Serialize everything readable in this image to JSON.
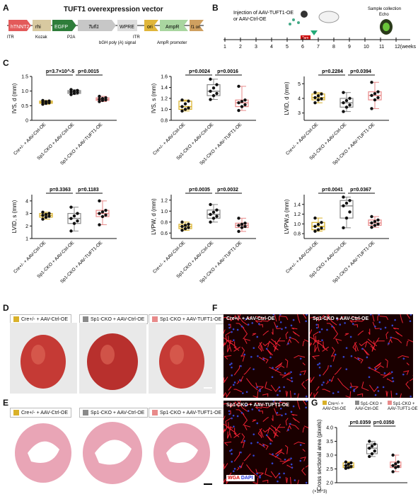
{
  "panels": {
    "A": {
      "letter": "A",
      "title": "TUFT1 overexpression vector",
      "segments": [
        "hTNNT2",
        "rhi",
        "EGFP",
        "Tufl1",
        "WPRE",
        "ori",
        "AmpR",
        "f1 ori"
      ],
      "below": [
        "ITR",
        "Kozak",
        "P2A",
        "bGH poly (A) signal",
        "ITR",
        "AmpR promoter"
      ]
    },
    "B": {
      "letter": "B",
      "injection": "Injection of AAV-TUFT1-OE\nor AAV-Ctrl-OE",
      "tam": "Tam",
      "sample": "Sample collection",
      "echo": "Echo",
      "ticks": [
        "1",
        "2",
        "3",
        "4",
        "5",
        "6",
        "7",
        "8",
        "9",
        "10",
        "11",
        "12(weeks)"
      ]
    },
    "C": {
      "letter": "C"
    },
    "D": {
      "letter": "D"
    },
    "E": {
      "letter": "E"
    },
    "F": {
      "letter": "F",
      "labels": [
        "Cre+/- + AAV-Ctrl-OE",
        "Sp1-CKO + AAV-Ctrl-OE",
        "Sp1-CKO + AAV-TUFT1-OE"
      ],
      "wga": "WGA",
      "dapi": "DAPI"
    },
    "G": {
      "letter": "G"
    }
  },
  "groups": {
    "g1": "Cre+/- + AAV-Ctrl-OE",
    "g2": "Sp1-CKO + AAV-Ctrl-OE",
    "g3": "Sp1-CKO + AAV-TUFT1-OE"
  },
  "colors": {
    "g1": "#d9b12a",
    "g2": "#8a8a8a",
    "g3": "#e88a8a"
  },
  "chart_data": [
    {
      "type": "box",
      "ylabel": "IVS, d (mm)",
      "ylim": [
        0.0,
        1.5
      ],
      "yticks": [
        "0",
        "0.5",
        "1.0",
        "1.5"
      ],
      "p1": "p=3.7×10^-5",
      "p2": "p=0.0015",
      "groups": [
        {
          "median": 0.62,
          "q1": 0.58,
          "q3": 0.66,
          "min": 0.55,
          "max": 0.68
        },
        {
          "median": 0.97,
          "q1": 0.92,
          "q3": 1.02,
          "min": 0.88,
          "max": 1.05
        },
        {
          "median": 0.72,
          "q1": 0.68,
          "q3": 0.77,
          "min": 0.64,
          "max": 0.82
        }
      ]
    },
    {
      "type": "box",
      "ylabel": "IVS, s (mm)",
      "ylim": [
        0.8,
        1.6
      ],
      "yticks": [
        "0.8",
        "1.0",
        "1.2",
        "1.4",
        "1.6"
      ],
      "p1": "p=0.0024",
      "p2": "p=0.0016",
      "groups": [
        {
          "median": 1.05,
          "q1": 1.0,
          "q3": 1.15,
          "min": 0.97,
          "max": 1.17
        },
        {
          "median": 1.33,
          "q1": 1.25,
          "q3": 1.45,
          "min": 1.18,
          "max": 1.55
        },
        {
          "median": 1.12,
          "q1": 1.05,
          "q3": 1.17,
          "min": 0.98,
          "max": 1.42
        }
      ]
    },
    {
      "type": "box",
      "ylabel": "LVID, d (mm)",
      "ylim": [
        2.5,
        5.5
      ],
      "yticks": [
        "3",
        "4",
        "5"
      ],
      "p1": "p=0.2284",
      "p2": "p=0.0394",
      "groups": [
        {
          "median": 4.05,
          "q1": 3.9,
          "q3": 4.3,
          "min": 3.7,
          "max": 4.4
        },
        {
          "median": 3.7,
          "q1": 3.4,
          "q3": 4.0,
          "min": 3.1,
          "max": 4.4
        },
        {
          "median": 4.2,
          "q1": 3.9,
          "q3": 4.45,
          "min": 3.3,
          "max": 5.1
        }
      ]
    },
    {
      "type": "box",
      "ylabel": "LVID, s (mm)",
      "ylim": [
        1.0,
        4.5
      ],
      "yticks": [
        "1",
        "2",
        "3",
        "4"
      ],
      "p1": "p=0.3363",
      "p2": "p=0.1183",
      "groups": [
        {
          "median": 2.85,
          "q1": 2.7,
          "q3": 3.0,
          "min": 2.55,
          "max": 3.1
        },
        {
          "median": 2.6,
          "q1": 2.2,
          "q3": 3.0,
          "min": 1.6,
          "max": 3.5
        },
        {
          "median": 3.0,
          "q1": 2.75,
          "q3": 3.25,
          "min": 2.1,
          "max": 4.0
        }
      ]
    },
    {
      "type": "box",
      "ylabel": "LVPW, d (mm)",
      "ylim": [
        0.5,
        1.3
      ],
      "yticks": [
        "0.6",
        "0.8",
        "1.0",
        "1.2"
      ],
      "p1": "p=0.0035",
      "p2": "p=0.0032",
      "groups": [
        {
          "median": 0.72,
          "q1": 0.68,
          "q3": 0.76,
          "min": 0.65,
          "max": 0.8
        },
        {
          "median": 0.94,
          "q1": 0.87,
          "q3": 1.02,
          "min": 0.8,
          "max": 1.12
        },
        {
          "median": 0.74,
          "q1": 0.7,
          "q3": 0.78,
          "min": 0.63,
          "max": 0.87
        }
      ]
    },
    {
      "type": "box",
      "ylabel": "LVPW,s (mm)",
      "ylim": [
        0.7,
        1.6
      ],
      "yticks": [
        "0.8",
        "1.0",
        "1.2",
        "1.4"
      ],
      "p1": "p=0.0041",
      "p2": "p=0.0367",
      "groups": [
        {
          "median": 0.95,
          "q1": 0.88,
          "q3": 1.03,
          "min": 0.85,
          "max": 1.12
        },
        {
          "median": 1.37,
          "q1": 1.12,
          "q3": 1.48,
          "min": 0.92,
          "max": 1.55
        },
        {
          "median": 1.02,
          "q1": 0.97,
          "q3": 1.08,
          "min": 0.93,
          "max": 1.15
        }
      ]
    },
    {
      "type": "box",
      "ylabel": "Cross sectional area (pixels)",
      "yunit": "(×10^3)",
      "ylim": [
        2.0,
        4.0
      ],
      "yticks": [
        "2.0",
        "2.5",
        "3.0",
        "3.5",
        "4.0"
      ],
      "p1": "p=0.0359",
      "p2": "p=0.0350",
      "groups": [
        {
          "median": 2.62,
          "q1": 2.55,
          "q3": 2.72,
          "min": 2.52,
          "max": 2.75
        },
        {
          "median": 3.25,
          "q1": 3.05,
          "q3": 3.4,
          "min": 2.95,
          "max": 3.5
        },
        {
          "median": 2.62,
          "q1": 2.55,
          "q3": 2.75,
          "min": 2.4,
          "max": 3.0
        }
      ]
    }
  ]
}
